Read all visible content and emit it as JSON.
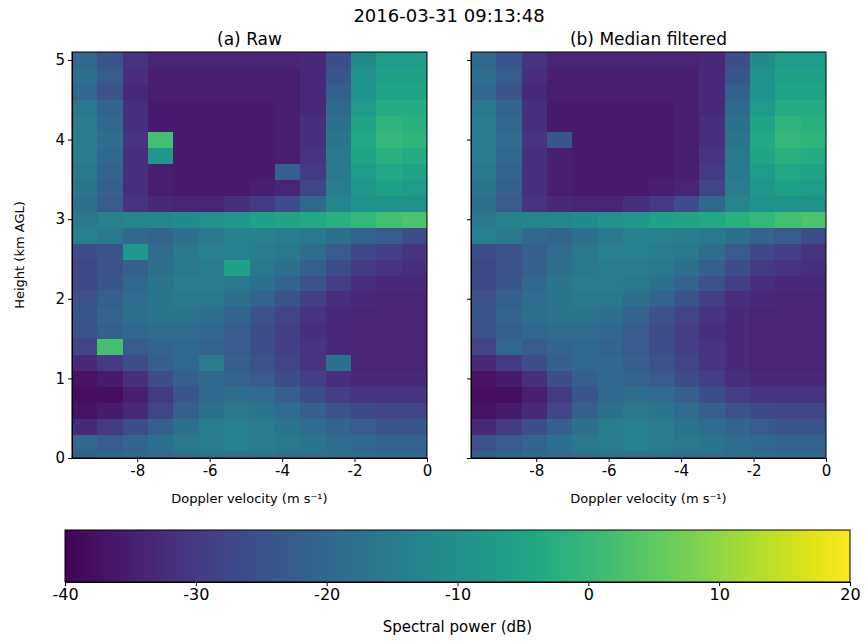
{
  "chart_data": {
    "type": "heatmap",
    "title": "2016-03-31 09:13:48",
    "x_label": "Doppler velocity (m s⁻¹)",
    "y_label": "Height (km AGL)",
    "xlim": [
      -9.8,
      0
    ],
    "xticks": [
      -8,
      -6,
      -4,
      -2,
      0
    ],
    "ylim": [
      0,
      5.1
    ],
    "yticks": [
      0,
      1,
      2,
      3,
      4,
      5
    ],
    "x": [
      -9.45,
      -8.75,
      -8.05,
      -7.35,
      -6.65,
      -5.95,
      -5.25,
      -4.55,
      -3.85,
      -3.15,
      -2.45,
      -1.75,
      -1.05,
      -0.35
    ],
    "y": [
      0,
      0.2,
      0.4,
      0.6,
      0.8,
      1.0,
      1.2,
      1.4,
      1.6,
      1.8,
      2.0,
      2.2,
      2.4,
      2.6,
      2.8,
      3.0,
      3.2,
      3.4,
      3.6,
      3.8,
      4.0,
      4.2,
      4.4,
      4.6,
      4.8,
      5.0
    ],
    "panels": [
      {
        "title": "(a) Raw",
        "values": [
          [
            -22,
            -21,
            -20,
            -19,
            -18,
            -17,
            -17,
            -17,
            -18,
            -18,
            -19,
            -19,
            -20,
            -20
          ],
          [
            -20,
            -23,
            -21,
            -18,
            -16,
            -15,
            -14,
            -15,
            -16,
            -17,
            -19,
            -20,
            -21,
            -21
          ],
          [
            -33,
            -30,
            -26,
            -22,
            -18,
            -15,
            -14,
            -15,
            -17,
            -19,
            -21,
            -23,
            -24,
            -24
          ],
          [
            -37,
            -36,
            -33,
            -28,
            -22,
            -18,
            -16,
            -17,
            -19,
            -22,
            -25,
            -27,
            -28,
            -28
          ],
          [
            -38,
            -38,
            -35,
            -30,
            -24,
            -20,
            -18,
            -19,
            -22,
            -26,
            -29,
            -31,
            -31,
            -31
          ],
          [
            -37,
            -36,
            -32,
            -26,
            -22,
            -20,
            -21,
            -23,
            -26,
            -29,
            -32,
            -33,
            -33,
            -33
          ],
          [
            -33,
            -30,
            -26,
            -22,
            -20,
            -15,
            -22,
            -25,
            -28,
            -31,
            -18,
            -34,
            -34,
            -34
          ],
          [
            -28,
            2,
            -23,
            -21,
            -20,
            -21,
            -23,
            -26,
            -29,
            -31,
            -33,
            -34,
            -34,
            -34
          ],
          [
            -25,
            -22,
            -20,
            -19,
            -19,
            -20,
            -23,
            -26,
            -29,
            -32,
            -33,
            -34,
            -34,
            -34
          ],
          [
            -24,
            -21,
            -18,
            -17,
            -17,
            -18,
            -21,
            -25,
            -28,
            -31,
            -33,
            -34,
            -34,
            -34
          ],
          [
            -25,
            -22,
            -19,
            -17,
            -16,
            -16,
            -18,
            -21,
            -25,
            -29,
            -32,
            -33,
            -34,
            -34
          ],
          [
            -27,
            -24,
            -20,
            -17,
            -15,
            -15,
            -16,
            -18,
            -21,
            -25,
            -29,
            -32,
            -33,
            -33
          ],
          [
            -27,
            -25,
            -22,
            -18,
            -16,
            -15,
            -6,
            -16,
            -18,
            -22,
            -26,
            -30,
            -31,
            -32
          ],
          [
            -26,
            -25,
            -8,
            -19,
            -16,
            -14,
            -14,
            -15,
            -16,
            -19,
            -23,
            -27,
            -29,
            -31
          ],
          [
            -14,
            -16,
            -20,
            -21,
            -18,
            -16,
            -14,
            -14,
            -15,
            -16,
            -18,
            -21,
            -23,
            -26
          ],
          [
            -16,
            -14,
            -13,
            -12,
            -11,
            -10,
            -8,
            -6,
            -5,
            -4,
            -2,
            0,
            2,
            3
          ],
          [
            -18,
            -23,
            -31,
            -33,
            -34,
            -34,
            -32,
            -30,
            -26,
            -20,
            -13,
            -9,
            -9,
            -10
          ],
          [
            -17,
            -22,
            -32,
            -35,
            -36,
            -36,
            -36,
            -35,
            -34,
            -28,
            -15,
            -8,
            -6,
            -7
          ],
          [
            -16,
            -21,
            -32,
            -35,
            -36,
            -36,
            -36,
            -36,
            -22,
            -30,
            -16,
            -7,
            -4,
            -5
          ],
          [
            -15,
            -20,
            -32,
            -8,
            -36,
            -36,
            -36,
            -36,
            -35,
            -31,
            -16,
            -5,
            -2,
            -3
          ],
          [
            -15,
            -19,
            -31,
            2,
            -36,
            -36,
            -36,
            -36,
            -35,
            -32,
            -17,
            -4,
            0,
            -1
          ],
          [
            -15,
            -20,
            -32,
            -36,
            -36,
            -36,
            -36,
            -36,
            -35,
            -32,
            -18,
            -5,
            -1,
            -2
          ],
          [
            -16,
            -21,
            -32,
            -36,
            -36,
            -36,
            -36,
            -36,
            -35,
            -33,
            -20,
            -7,
            -3,
            -3
          ],
          [
            -20,
            -25,
            -33,
            -35,
            -35,
            -35,
            -35,
            -35,
            -35,
            -33,
            -22,
            -9,
            -5,
            -5
          ],
          [
            -18,
            -23,
            -32,
            -35,
            -35,
            -35,
            -35,
            -35,
            -35,
            -33,
            -24,
            -10,
            -6,
            -6
          ],
          [
            -20,
            -24,
            -31,
            -34,
            -34,
            -34,
            -34,
            -34,
            -34,
            -33,
            -26,
            -11,
            -7,
            -7
          ]
        ]
      },
      {
        "title": "(b) Median filtered",
        "tick_labels": "x",
        "values": [
          [
            -22,
            -21,
            -20,
            -19,
            -18,
            -17,
            -17,
            -17,
            -18,
            -18,
            -19,
            -19,
            -20,
            -20
          ],
          [
            -25,
            -23,
            -21,
            -18,
            -16,
            -15,
            -14,
            -15,
            -16,
            -17,
            -19,
            -20,
            -21,
            -21
          ],
          [
            -33,
            -30,
            -26,
            -22,
            -18,
            -15,
            -14,
            -15,
            -17,
            -19,
            -21,
            -23,
            -24,
            -24
          ],
          [
            -37,
            -36,
            -33,
            -28,
            -22,
            -18,
            -16,
            -17,
            -19,
            -22,
            -25,
            -27,
            -28,
            -28
          ],
          [
            -38,
            -38,
            -35,
            -30,
            -24,
            -20,
            -18,
            -19,
            -22,
            -26,
            -29,
            -31,
            -31,
            -31
          ],
          [
            -37,
            -36,
            -32,
            -26,
            -22,
            -20,
            -21,
            -23,
            -26,
            -29,
            -32,
            -33,
            -33,
            -33
          ],
          [
            -33,
            -30,
            -26,
            -22,
            -20,
            -20,
            -22,
            -25,
            -28,
            -31,
            -33,
            -34,
            -34,
            -34
          ],
          [
            -28,
            -20,
            -23,
            -21,
            -20,
            -21,
            -23,
            -26,
            -29,
            -31,
            -33,
            -34,
            -34,
            -34
          ],
          [
            -25,
            -22,
            -20,
            -19,
            -19,
            -20,
            -23,
            -26,
            -29,
            -32,
            -33,
            -34,
            -34,
            -34
          ],
          [
            -24,
            -21,
            -18,
            -17,
            -17,
            -18,
            -21,
            -25,
            -28,
            -31,
            -33,
            -34,
            -34,
            -34
          ],
          [
            -25,
            -22,
            -19,
            -17,
            -16,
            -16,
            -18,
            -21,
            -25,
            -29,
            -32,
            -33,
            -34,
            -34
          ],
          [
            -27,
            -24,
            -20,
            -17,
            -15,
            -15,
            -16,
            -18,
            -21,
            -25,
            -29,
            -32,
            -33,
            -33
          ],
          [
            -27,
            -25,
            -22,
            -18,
            -16,
            -15,
            -15,
            -16,
            -18,
            -22,
            -26,
            -30,
            -31,
            -32
          ],
          [
            -26,
            -25,
            -22,
            -19,
            -16,
            -14,
            -14,
            -15,
            -16,
            -19,
            -23,
            -27,
            -29,
            -31
          ],
          [
            -14,
            -16,
            -20,
            -21,
            -18,
            -16,
            -14,
            -14,
            -15,
            -16,
            -18,
            -21,
            -23,
            -26
          ],
          [
            -16,
            -14,
            -13,
            -12,
            -11,
            -10,
            -8,
            -6,
            -5,
            -4,
            -2,
            0,
            2,
            3
          ],
          [
            -18,
            -23,
            -31,
            -33,
            -34,
            -34,
            -32,
            -30,
            -26,
            -20,
            -13,
            -9,
            -9,
            -10
          ],
          [
            -17,
            -22,
            -32,
            -35,
            -36,
            -36,
            -36,
            -35,
            -34,
            -28,
            -15,
            -8,
            -6,
            -7
          ],
          [
            -16,
            -21,
            -32,
            -35,
            -36,
            -36,
            -36,
            -36,
            -35,
            -30,
            -16,
            -7,
            -4,
            -5
          ],
          [
            -15,
            -20,
            -32,
            -35,
            -36,
            -36,
            -36,
            -36,
            -35,
            -31,
            -16,
            -5,
            -2,
            -3
          ],
          [
            -15,
            -19,
            -31,
            -24,
            -36,
            -36,
            -36,
            -36,
            -35,
            -32,
            -17,
            -4,
            0,
            -1
          ],
          [
            -15,
            -20,
            -32,
            -36,
            -36,
            -36,
            -36,
            -36,
            -35,
            -32,
            -18,
            -5,
            -1,
            -2
          ],
          [
            -16,
            -21,
            -32,
            -36,
            -36,
            -36,
            -36,
            -36,
            -35,
            -33,
            -20,
            -7,
            -3,
            -3
          ],
          [
            -20,
            -25,
            -33,
            -35,
            -35,
            -35,
            -35,
            -35,
            -35,
            -33,
            -22,
            -9,
            -5,
            -5
          ],
          [
            -18,
            -23,
            -32,
            -35,
            -35,
            -35,
            -35,
            -35,
            -35,
            -33,
            -24,
            -10,
            -6,
            -6
          ],
          [
            -20,
            -24,
            -31,
            -34,
            -34,
            -34,
            -34,
            -34,
            -34,
            -33,
            -26,
            -11,
            -7,
            -7
          ]
        ]
      }
    ],
    "colorbar": {
      "label": "Spectral power (dB)",
      "range": [
        -40,
        20
      ],
      "ticks": [
        -40,
        -30,
        -20,
        -10,
        0,
        10,
        20
      ]
    }
  }
}
